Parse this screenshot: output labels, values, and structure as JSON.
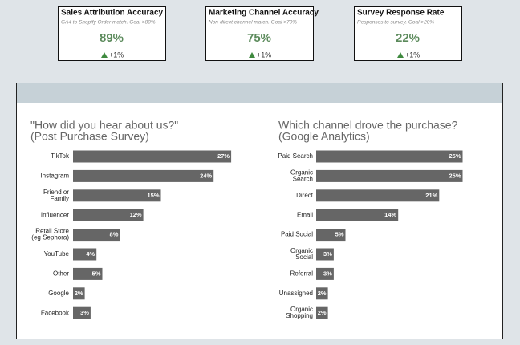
{
  "kpis": [
    {
      "title": "Sales Attribution Accuracy",
      "subtitle": "GA4 to Shopify Order match. Goal >80%",
      "value": "89%",
      "change": "+1%"
    },
    {
      "title": "Marketing Channel Accuracy",
      "subtitle": "Non-direct channel match. Goal >70%",
      "value": "75%",
      "change": "+1%"
    },
    {
      "title": "Survey Response Rate",
      "subtitle": "Responses to survey. Goal >20%",
      "value": "22%",
      "change": "+1%"
    }
  ],
  "chart_data": [
    {
      "type": "bar",
      "orientation": "horizontal",
      "title": "\"How did you hear about us?\"",
      "subtitle": "(Post Purchase Survey)",
      "categories": [
        "TikTok",
        "Instagram",
        "Friend or\nFamily",
        "Influencer",
        "Retail Store\n(eg Sephora)",
        "YouTube",
        "Other",
        "Google",
        "Facebook"
      ],
      "values": [
        27,
        24,
        15,
        12,
        8,
        4,
        5,
        2,
        3
      ],
      "value_labels": [
        "27%",
        "24%",
        "15%",
        "12%",
        "8%",
        "4%",
        "5%",
        "2%",
        "3%"
      ],
      "color": "#666666"
    },
    {
      "type": "bar",
      "orientation": "horizontal",
      "title": "Which channel drove the purchase?",
      "subtitle": "(Google Analytics)",
      "categories": [
        "Paid Search",
        "Organic\nSearch",
        "Direct",
        "Email",
        "Paid Social",
        "Organic\nSocial",
        "Referral",
        "Unassigned",
        "Organic\nShopping"
      ],
      "values": [
        25,
        25,
        21,
        14,
        5,
        3,
        3,
        2,
        2
      ],
      "value_labels": [
        "25%",
        "25%",
        "21%",
        "14%",
        "5%",
        "3%",
        "3%",
        "2%",
        "2%"
      ],
      "color": "#666666"
    }
  ]
}
